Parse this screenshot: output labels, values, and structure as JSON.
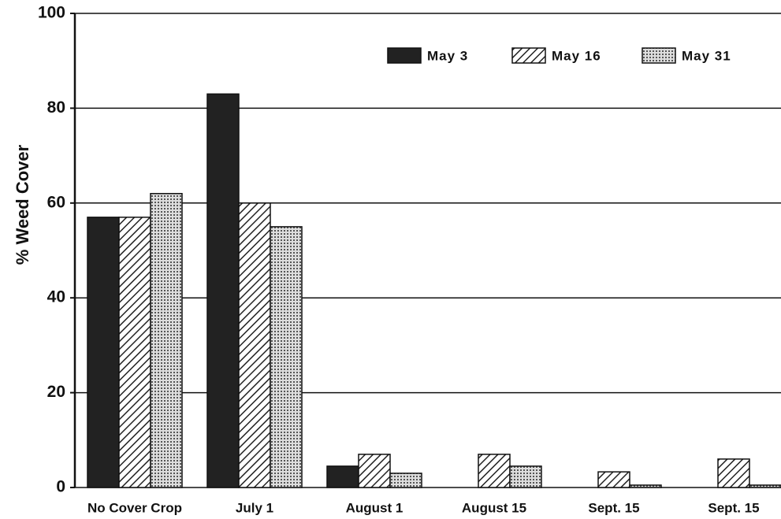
{
  "chart_data": {
    "type": "bar",
    "y_label": "% Weed Cover",
    "categories": [
      "No Cover Crop",
      "July 1",
      "August 1",
      "August 15",
      "Sept. 15",
      "Sept. 15"
    ],
    "series": [
      {
        "name": "May 3",
        "color": "#222222",
        "pattern": "solid",
        "values": [
          57,
          83,
          4.5,
          0,
          0,
          0
        ]
      },
      {
        "name": "May 16",
        "color": "#222222",
        "pattern": "hatch",
        "values": [
          57,
          60,
          7,
          7,
          3.3,
          6
        ]
      },
      {
        "name": "May 31",
        "color": "#222222",
        "pattern": "dots",
        "values": [
          62,
          55,
          3,
          4.5,
          0.5,
          0.5
        ]
      }
    ],
    "ylim": [
      0,
      100
    ],
    "yticks": [
      0,
      20,
      40,
      60,
      80,
      100
    ],
    "grid": true,
    "legend": "top-right"
  }
}
